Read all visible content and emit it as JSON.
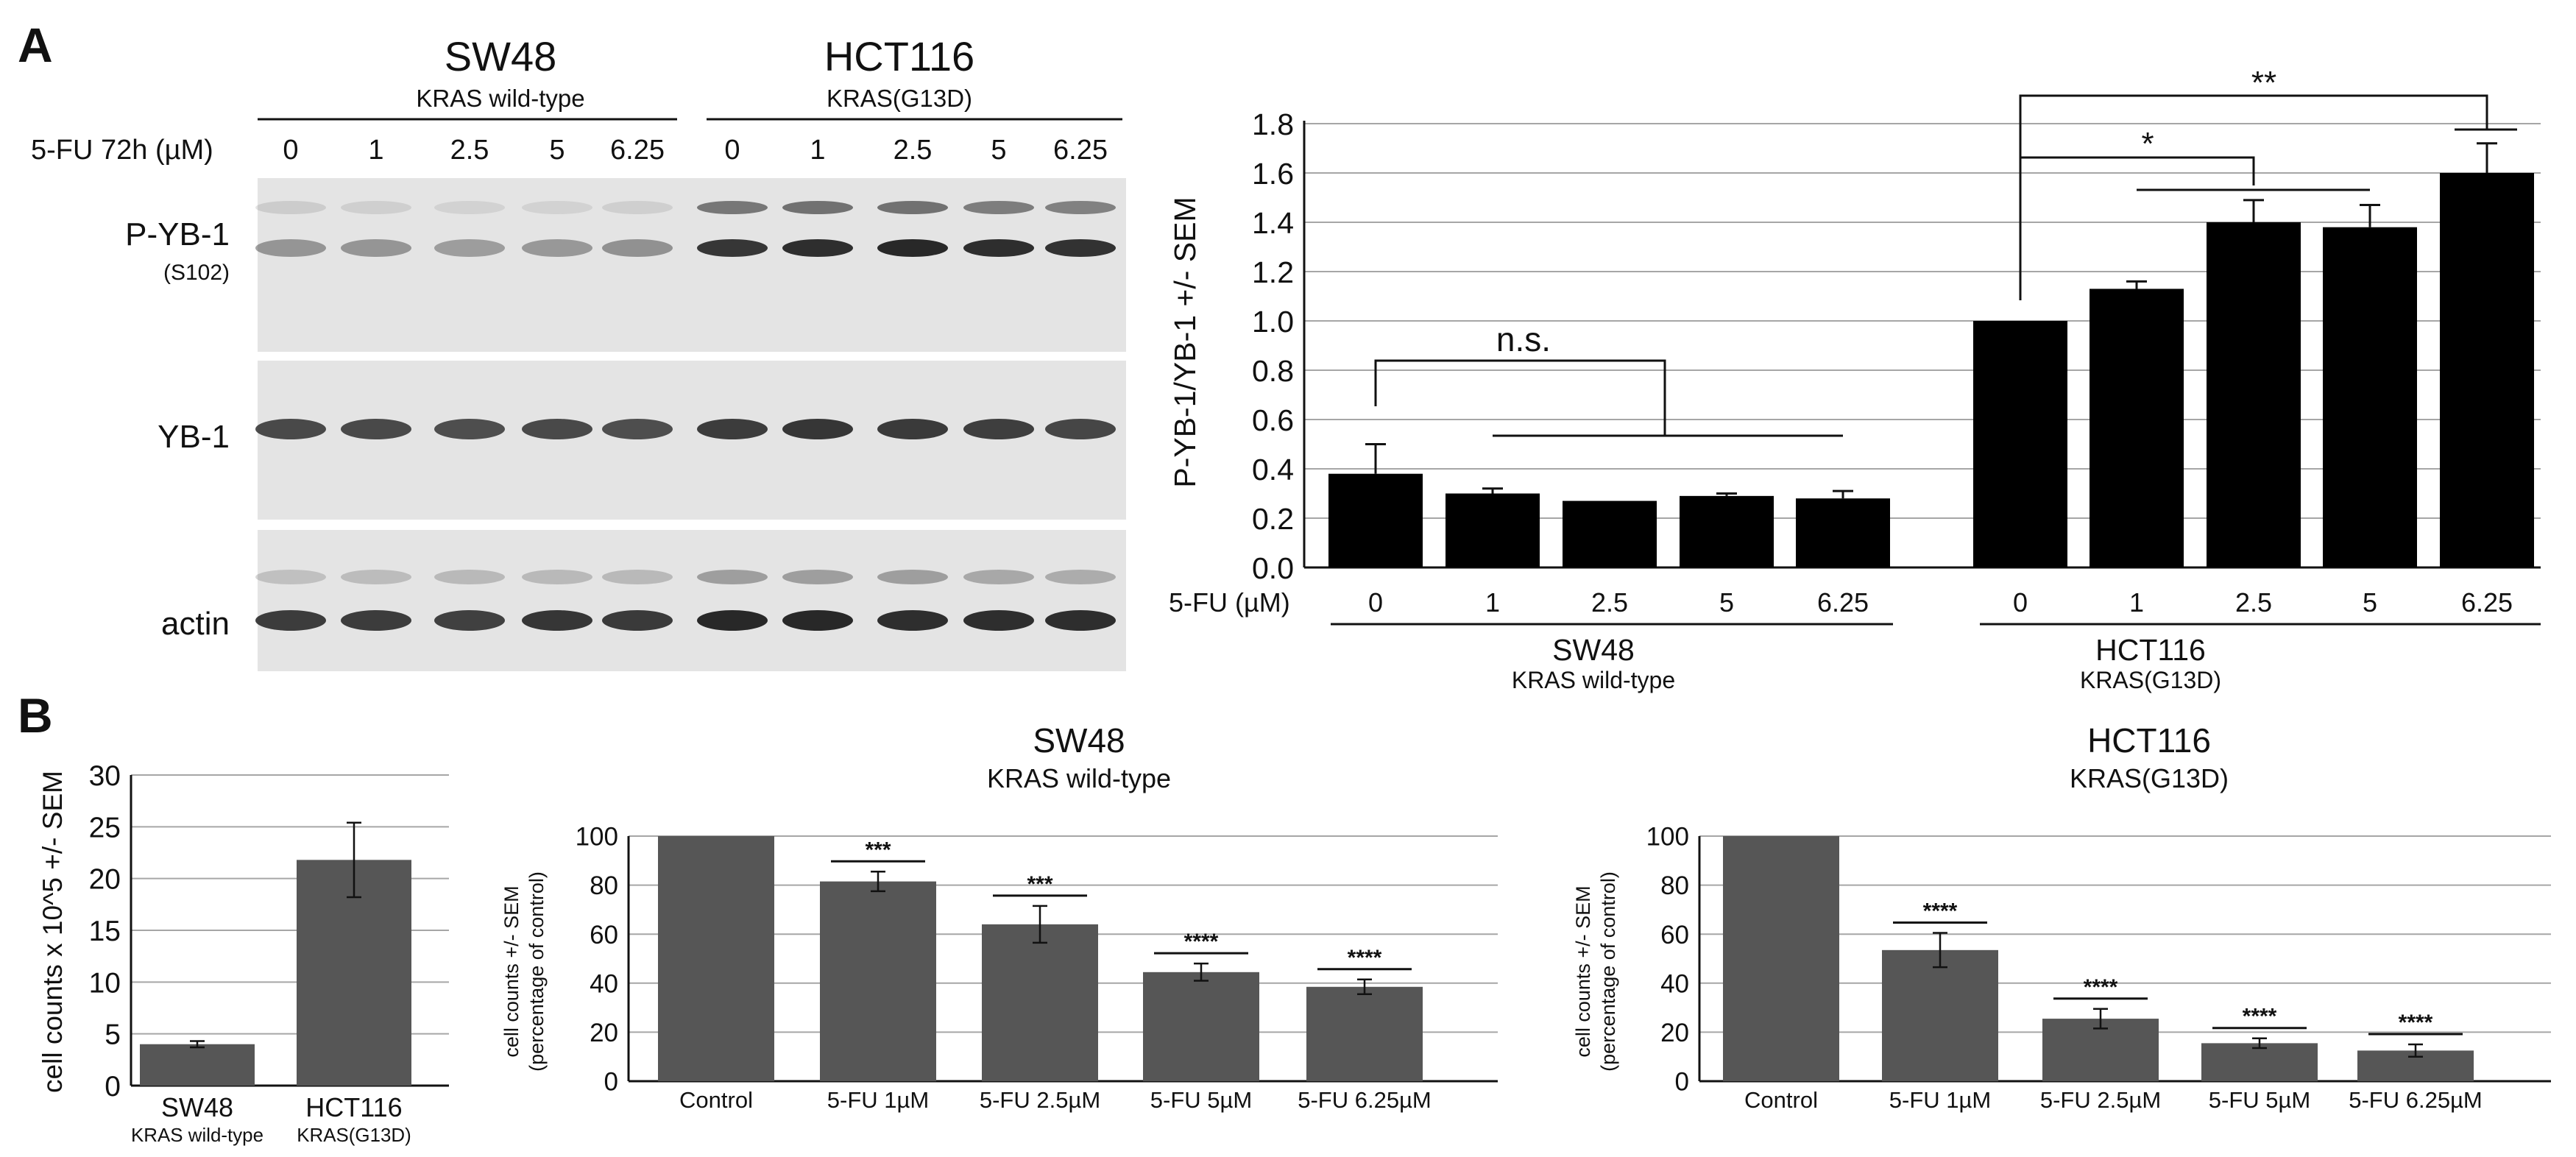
{
  "panels": {
    "a": "A",
    "b": "B"
  },
  "blot": {
    "treatment_label": "5-FU 72h (µM)",
    "cell_lines": [
      {
        "name": "SW48",
        "genotype": "KRAS wild-type"
      },
      {
        "name": "HCT116",
        "genotype": "KRAS(G13D)"
      }
    ],
    "doses": [
      "0",
      "1",
      "2.5",
      "5",
      "6.25"
    ],
    "rows": [
      {
        "label": "P-YB-1",
        "sublabel": "(S102)"
      },
      {
        "label": "YB-1",
        "sublabel": ""
      },
      {
        "label": "actin",
        "sublabel": ""
      }
    ],
    "band_intensity": {
      "pYB1_upper": [
        0.12,
        0.1,
        0.09,
        0.09,
        0.1,
        0.55,
        0.58,
        0.58,
        0.52,
        0.5
      ],
      "pYB1_main": [
        0.4,
        0.4,
        0.36,
        0.38,
        0.42,
        0.88,
        0.92,
        0.95,
        0.92,
        0.9
      ],
      "yb1": [
        0.78,
        0.78,
        0.76,
        0.78,
        0.76,
        0.85,
        0.88,
        0.86,
        0.84,
        0.8
      ],
      "actin_upper": [
        0.18,
        0.2,
        0.22,
        0.22,
        0.22,
        0.35,
        0.35,
        0.35,
        0.3,
        0.28
      ],
      "actin_main": [
        0.85,
        0.85,
        0.83,
        0.88,
        0.86,
        0.95,
        0.95,
        0.92,
        0.92,
        0.92
      ]
    }
  },
  "chart_data": [
    {
      "id": "A-quant",
      "type": "bar",
      "title": "",
      "xlabel": "5-FU (µM)",
      "ylabel": "P-YB-1/YB-1 +/- SEM",
      "ylim": [
        0,
        1.8
      ],
      "yticks": [
        "0.0",
        "0.2",
        "0.4",
        "0.6",
        "0.8",
        "1.0",
        "1.2",
        "1.4",
        "1.6",
        "1.8"
      ],
      "grid": true,
      "groups": [
        {
          "name": "SW48",
          "genotype": "KRAS wild-type",
          "categories": [
            "0",
            "1",
            "2.5",
            "5",
            "6.25"
          ],
          "values": [
            0.38,
            0.3,
            0.27,
            0.29,
            0.28
          ],
          "errors": [
            0.12,
            0.02,
            0.0,
            0.01,
            0.03
          ]
        },
        {
          "name": "HCT116",
          "genotype": "KRAS(G13D)",
          "categories": [
            "0",
            "1",
            "2.5",
            "5",
            "6.25"
          ],
          "values": [
            1.0,
            1.13,
            1.4,
            1.38,
            1.6
          ],
          "errors": [
            0.0,
            0.03,
            0.09,
            0.09,
            0.12
          ]
        }
      ],
      "annotations": [
        "n.s.",
        "*",
        "**"
      ]
    },
    {
      "id": "B-counts",
      "type": "bar",
      "title": "",
      "ylabel": "cell counts x 10^5 +/- SEM",
      "ylim": [
        0,
        30
      ],
      "yticks": [
        "0",
        "5",
        "10",
        "15",
        "20",
        "25",
        "30"
      ],
      "grid": true,
      "categories": [
        {
          "name": "SW48",
          "sub": "KRAS wild-type"
        },
        {
          "name": "HCT116",
          "sub": "KRAS(G13D)"
        }
      ],
      "values": [
        4.0,
        21.8
      ],
      "errors": [
        0.3,
        3.6
      ]
    },
    {
      "id": "B-sw48",
      "type": "bar",
      "title": "SW48",
      "subtitle": "KRAS wild-type",
      "ylabel": "cell counts +/- SEM",
      "ylabel2": "(percentage of control)",
      "ylim": [
        0,
        100
      ],
      "yticks": [
        "0",
        "20",
        "40",
        "60",
        "80",
        "100"
      ],
      "grid": true,
      "categories": [
        "Control",
        "5-FU 1µM",
        "5-FU 2.5µM",
        "5-FU 5µM",
        "5-FU 6.25µM"
      ],
      "values": [
        100,
        81.5,
        64,
        44.5,
        38.5
      ],
      "errors": [
        0,
        4,
        7.5,
        3.5,
        3
      ],
      "significance": [
        "",
        "***",
        "***",
        "****",
        "****"
      ]
    },
    {
      "id": "B-hct116",
      "type": "bar",
      "title": "HCT116",
      "subtitle": "KRAS(G13D)",
      "ylabel": "cell counts +/- SEM",
      "ylabel2": "(percentage of control)",
      "ylim": [
        0,
        100
      ],
      "yticks": [
        "0",
        "20",
        "40",
        "60",
        "80",
        "100"
      ],
      "grid": true,
      "categories": [
        "Control",
        "5-FU 1µM",
        "5-FU 2.5µM",
        "5-FU 5µM",
        "5-FU 6.25µM"
      ],
      "values": [
        100,
        53.5,
        25.5,
        15.5,
        12.5
      ],
      "errors": [
        0,
        7,
        4,
        2,
        2.5
      ],
      "significance": [
        "",
        "****",
        "****",
        "****",
        "****"
      ]
    }
  ],
  "colors": {
    "bar_black": "#000000",
    "bar_gray": "#565656",
    "grid": "#a6a6a6",
    "band": "#1e1e1e",
    "blot_bg": "#e2e2e2"
  }
}
